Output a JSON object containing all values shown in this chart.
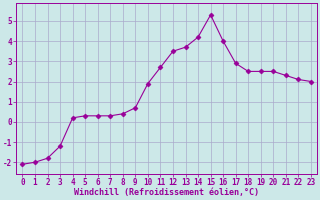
{
  "x": [
    0,
    1,
    2,
    3,
    4,
    5,
    6,
    7,
    8,
    9,
    10,
    11,
    12,
    13,
    14,
    15,
    16,
    17,
    18,
    19,
    20,
    21,
    22,
    23
  ],
  "y": [
    -2.1,
    -2.0,
    -1.8,
    -1.2,
    0.2,
    0.3,
    0.3,
    0.3,
    0.4,
    0.7,
    1.9,
    2.7,
    3.5,
    3.7,
    4.2,
    5.3,
    4.0,
    2.9,
    2.5,
    2.5,
    2.5,
    2.3,
    2.1,
    2.0
  ],
  "line_color": "#990099",
  "marker": "D",
  "markersize": 2.5,
  "background_color": "#cce8e8",
  "grid_color": "#aaaacc",
  "xlabel": "Windchill (Refroidissement éolien,°C)",
  "xlabel_color": "#990099",
  "xlabel_fontsize": 6.0,
  "tick_color": "#990099",
  "tick_fontsize": 5.5,
  "yticks": [
    -2,
    -1,
    0,
    1,
    2,
    3,
    4,
    5
  ],
  "ylim": [
    -2.6,
    5.9
  ],
  "xlim": [
    -0.5,
    23.5
  ]
}
